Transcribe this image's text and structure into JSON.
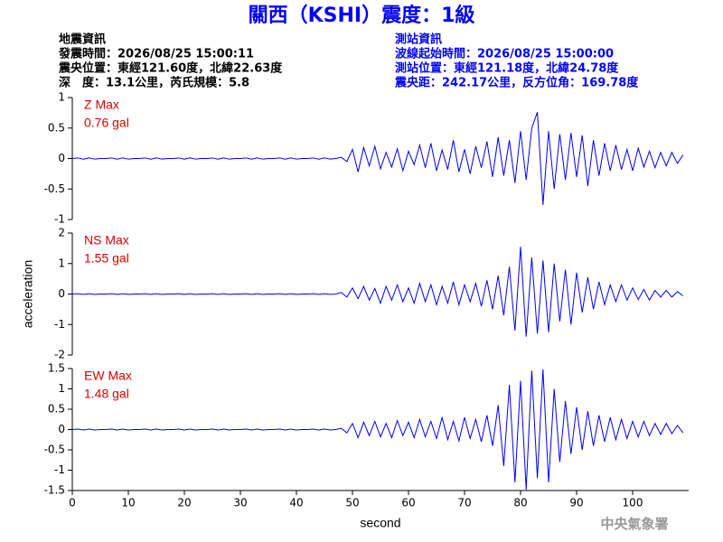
{
  "header": {
    "title": "關西（KSHI）震度：1級",
    "left": [
      "地震資訊",
      "發震時間：2026/08/25 15:00:11",
      "震央位置：東經121.60度，北緯22.63度",
      "深　度：13.1公里，芮氏規模：5.8"
    ],
    "right": [
      "測站資訊",
      "波線起始時間：2026/08/25 15:00:00",
      "測站位置：東經121.18度，北緯24.78度",
      "震央距：242.17公里，反方位角：169.78度"
    ],
    "footer": "中央氣象署"
  },
  "chart_data": [
    {
      "type": "line",
      "annotations": [
        "Z Max",
        "0.76 gal"
      ],
      "color": "#0000ff",
      "xlim": [
        0,
        110
      ],
      "ylim": [
        -1,
        1
      ],
      "yticks": [
        -1,
        -0.5,
        0,
        0.5,
        1
      ],
      "x": [
        0,
        1,
        2,
        3,
        4,
        5,
        6,
        7,
        8,
        9,
        10,
        11,
        12,
        13,
        14,
        15,
        16,
        17,
        18,
        19,
        20,
        21,
        22,
        23,
        24,
        25,
        26,
        27,
        28,
        29,
        30,
        31,
        32,
        33,
        34,
        35,
        36,
        37,
        38,
        39,
        40,
        41,
        42,
        43,
        44,
        45,
        46,
        47,
        48,
        49,
        50,
        51,
        52,
        53,
        54,
        55,
        56,
        57,
        58,
        59,
        60,
        61,
        62,
        63,
        64,
        65,
        66,
        67,
        68,
        69,
        70,
        71,
        72,
        73,
        74,
        75,
        76,
        77,
        78,
        79,
        80,
        81,
        82,
        83,
        84,
        85,
        86,
        87,
        88,
        89,
        90,
        91,
        92,
        93,
        94,
        95,
        96,
        97,
        98,
        99,
        100,
        101,
        102,
        103,
        104,
        105,
        106,
        107,
        108,
        109
      ],
      "values": [
        0,
        0.01,
        -0.01,
        0.01,
        -0.01,
        0,
        0,
        0.01,
        -0.01,
        0.01,
        -0.01,
        0,
        0,
        0.01,
        -0.01,
        0.01,
        -0.01,
        0,
        0,
        0.01,
        -0.01,
        0.01,
        -0.01,
        0,
        0,
        0.01,
        -0.01,
        0.01,
        -0.01,
        0,
        0,
        0.01,
        -0.01,
        0.01,
        -0.01,
        0,
        0,
        0.01,
        -0.01,
        0.01,
        -0.01,
        0,
        0,
        0.01,
        -0.01,
        0.01,
        -0.01,
        0,
        0.02,
        -0.05,
        0.15,
        -0.22,
        0.18,
        -0.12,
        0.2,
        -0.17,
        0.1,
        -0.14,
        0.16,
        -0.2,
        0.12,
        -0.1,
        0.22,
        -0.15,
        0.25,
        -0.2,
        0.14,
        -0.18,
        0.3,
        -0.22,
        0.15,
        -0.25,
        0.2,
        -0.15,
        0.28,
        -0.3,
        0.35,
        -0.28,
        0.3,
        -0.4,
        0.45,
        -0.35,
        0.5,
        0.76,
        -0.76,
        0.45,
        -0.5,
        0.4,
        -0.35,
        0.42,
        -0.3,
        0.38,
        -0.45,
        0.3,
        -0.28,
        0.25,
        -0.2,
        0.22,
        -0.18,
        0.15,
        -0.2,
        0.17,
        -0.14,
        0.12,
        -0.15,
        0.1,
        -0.12,
        0.1,
        -0.08,
        0.06
      ]
    },
    {
      "type": "line",
      "annotations": [
        "NS Max",
        "1.55 gal"
      ],
      "ylabel": "acceleration",
      "color": "#0000ff",
      "xlim": [
        0,
        110
      ],
      "ylim": [
        -2,
        2
      ],
      "yticks": [
        -2,
        -1,
        0,
        1,
        2
      ],
      "x": [
        0,
        1,
        2,
        3,
        4,
        5,
        6,
        7,
        8,
        9,
        10,
        11,
        12,
        13,
        14,
        15,
        16,
        17,
        18,
        19,
        20,
        21,
        22,
        23,
        24,
        25,
        26,
        27,
        28,
        29,
        30,
        31,
        32,
        33,
        34,
        35,
        36,
        37,
        38,
        39,
        40,
        41,
        42,
        43,
        44,
        45,
        46,
        47,
        48,
        49,
        50,
        51,
        52,
        53,
        54,
        55,
        56,
        57,
        58,
        59,
        60,
        61,
        62,
        63,
        64,
        65,
        66,
        67,
        68,
        69,
        70,
        71,
        72,
        73,
        74,
        75,
        76,
        77,
        78,
        79,
        80,
        81,
        82,
        83,
        84,
        85,
        86,
        87,
        88,
        89,
        90,
        91,
        92,
        93,
        94,
        95,
        96,
        97,
        98,
        99,
        100,
        101,
        102,
        103,
        104,
        105,
        106,
        107,
        108,
        109
      ],
      "values": [
        0,
        0.01,
        -0.01,
        0.01,
        -0.01,
        0,
        0,
        0.01,
        -0.01,
        0.01,
        -0.01,
        0,
        0,
        0.01,
        -0.01,
        0.01,
        -0.01,
        0,
        0,
        0.01,
        -0.01,
        0.01,
        -0.01,
        0,
        0,
        0.01,
        -0.01,
        0.01,
        -0.01,
        0,
        0,
        0.01,
        -0.01,
        0.01,
        -0.01,
        0,
        0,
        0.01,
        -0.01,
        0.01,
        -0.01,
        0,
        0,
        0.01,
        -0.01,
        0.01,
        -0.01,
        0,
        0.05,
        -0.1,
        0.2,
        -0.15,
        0.25,
        -0.2,
        0.18,
        -0.3,
        0.25,
        -0.2,
        0.3,
        -0.25,
        0.2,
        -0.3,
        0.35,
        -0.25,
        0.3,
        -0.35,
        0.25,
        -0.3,
        0.4,
        -0.35,
        0.3,
        -0.25,
        0.35,
        -0.4,
        0.45,
        -0.5,
        0.6,
        -0.7,
        0.9,
        -1.2,
        1.55,
        -1.4,
        1.2,
        -1.3,
        1.1,
        -1.25,
        1.0,
        -0.9,
        0.8,
        -1.0,
        0.7,
        -0.6,
        0.55,
        -0.5,
        0.4,
        -0.35,
        0.3,
        -0.25,
        0.3,
        -0.2,
        0.2,
        -0.18,
        0.15,
        -0.2,
        0.12,
        -0.1,
        0.12,
        -0.1,
        0.08,
        -0.06
      ]
    },
    {
      "type": "line",
      "annotations": [
        "EW Max",
        "1.48 gal"
      ],
      "xlabel": "second",
      "color": "#0000ff",
      "xlim": [
        0,
        110
      ],
      "xticks": [
        0,
        10,
        20,
        30,
        40,
        50,
        60,
        70,
        80,
        90,
        100
      ],
      "ylim": [
        -1.5,
        1.5
      ],
      "yticks": [
        -1.5,
        -1,
        -0.5,
        0,
        0.5,
        1,
        1.5
      ],
      "x": [
        0,
        1,
        2,
        3,
        4,
        5,
        6,
        7,
        8,
        9,
        10,
        11,
        12,
        13,
        14,
        15,
        16,
        17,
        18,
        19,
        20,
        21,
        22,
        23,
        24,
        25,
        26,
        27,
        28,
        29,
        30,
        31,
        32,
        33,
        34,
        35,
        36,
        37,
        38,
        39,
        40,
        41,
        42,
        43,
        44,
        45,
        46,
        47,
        48,
        49,
        50,
        51,
        52,
        53,
        54,
        55,
        56,
        57,
        58,
        59,
        60,
        61,
        62,
        63,
        64,
        65,
        66,
        67,
        68,
        69,
        70,
        71,
        72,
        73,
        74,
        75,
        76,
        77,
        78,
        79,
        80,
        81,
        82,
        83,
        84,
        85,
        86,
        87,
        88,
        89,
        90,
        91,
        92,
        93,
        94,
        95,
        96,
        97,
        98,
        99,
        100,
        101,
        102,
        103,
        104,
        105,
        106,
        107,
        108,
        109
      ],
      "values": [
        0,
        0.01,
        -0.01,
        0.01,
        -0.01,
        0,
        0,
        0.01,
        -0.01,
        0.01,
        -0.01,
        0,
        0,
        0.01,
        -0.01,
        0.01,
        -0.01,
        0,
        0,
        0.01,
        -0.01,
        0.01,
        -0.01,
        0,
        0,
        0.01,
        -0.01,
        0.01,
        -0.01,
        0,
        0,
        0.01,
        -0.01,
        0.01,
        -0.01,
        0,
        0,
        0.01,
        -0.01,
        0.01,
        -0.01,
        0,
        0,
        0.01,
        -0.01,
        0.01,
        -0.01,
        0,
        0.03,
        -0.08,
        0.15,
        -0.2,
        0.18,
        -0.15,
        0.2,
        -0.18,
        0.15,
        -0.2,
        0.22,
        -0.15,
        0.18,
        -0.2,
        0.25,
        -0.18,
        0.2,
        -0.22,
        0.3,
        -0.25,
        0.2,
        -0.28,
        0.3,
        -0.22,
        0.25,
        -0.3,
        0.35,
        -0.4,
        0.6,
        -0.9,
        1.1,
        -1.3,
        1.2,
        -1.48,
        1.45,
        -1.2,
        1.48,
        -1.3,
        1.0,
        -0.8,
        0.7,
        -0.6,
        0.55,
        -0.5,
        0.45,
        -0.4,
        0.35,
        -0.3,
        0.3,
        -0.25,
        0.25,
        -0.22,
        0.2,
        -0.18,
        0.2,
        -0.15,
        0.15,
        -0.12,
        0.15,
        -0.1,
        0.1,
        -0.08
      ]
    }
  ]
}
